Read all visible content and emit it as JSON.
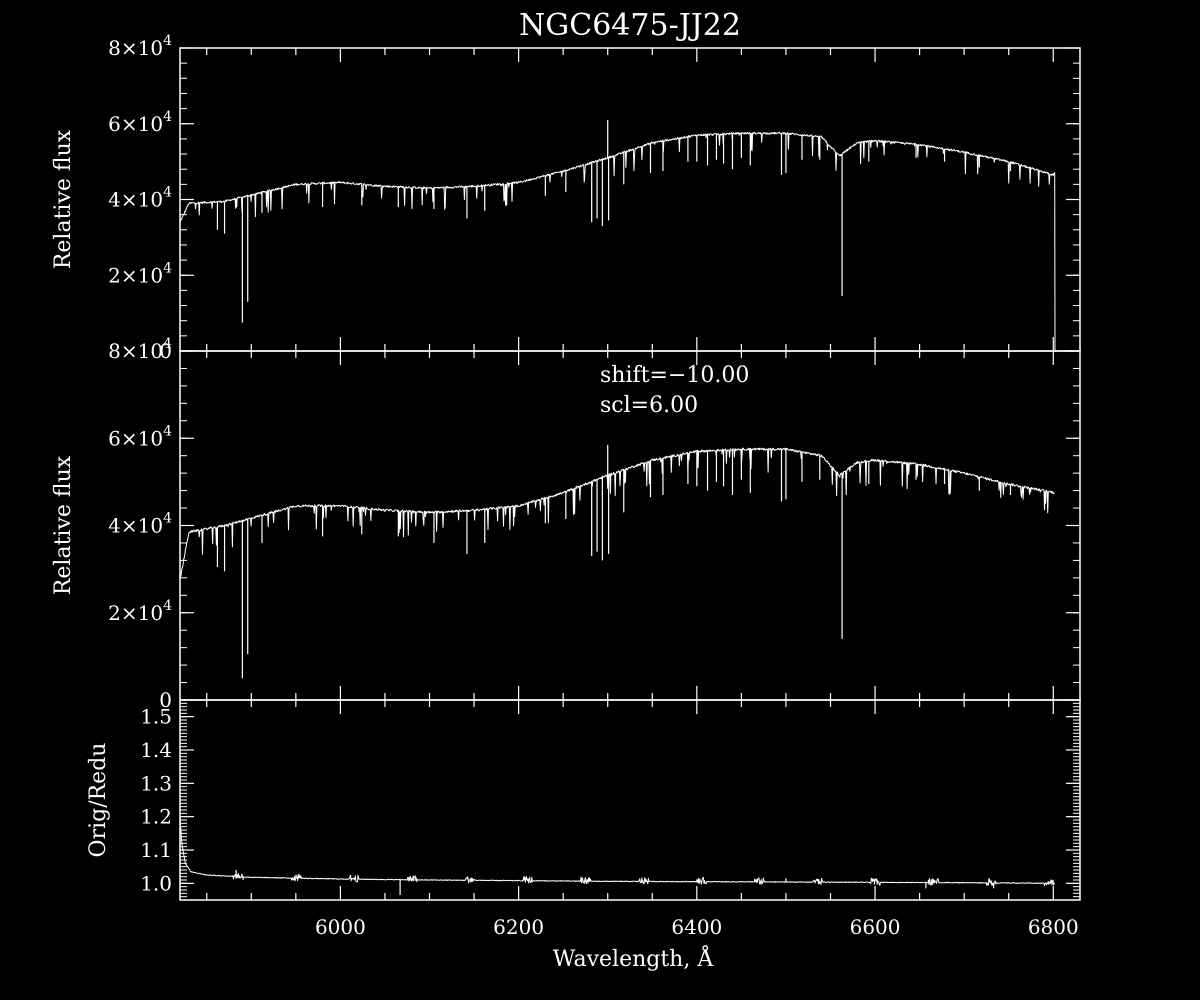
{
  "chart_data": {
    "type": "line",
    "title": "NGC6475-JJ22",
    "x": {
      "label": "Wavelength, Å",
      "range": [
        5820,
        6830
      ],
      "ticks": [
        6000,
        6200,
        6400,
        6600,
        6800
      ],
      "tick_labels": [
        "6000",
        "6200",
        "6400",
        "6600",
        "6800"
      ]
    },
    "panels": [
      {
        "ylabel": "Relative flux",
        "ylim": [
          0,
          80000
        ],
        "yticks": [
          0,
          20000,
          40000,
          60000,
          80000
        ],
        "ytick_mantissa": [
          "0",
          "2×10",
          "4×10",
          "6×10",
          "8×10"
        ],
        "ytick_exp": [
          "",
          "4",
          "4",
          "4",
          "4"
        ],
        "annotations": [],
        "series": [
          {
            "continuum": [
              [
                5820,
                34000
              ],
              [
                5830,
                39000
              ],
              [
                5870,
                39500
              ],
              [
                5950,
                44000
              ],
              [
                6000,
                44500
              ],
              [
                6050,
                43500
              ],
              [
                6100,
                43000
              ],
              [
                6150,
                43500
              ],
              [
                6200,
                44500
              ],
              [
                6250,
                47500
              ],
              [
                6300,
                51000
              ],
              [
                6350,
                55000
              ],
              [
                6400,
                57000
              ],
              [
                6450,
                57500
              ],
              [
                6500,
                57500
              ],
              [
                6540,
                56500
              ],
              [
                6560,
                51500
              ],
              [
                6580,
                55000
              ],
              [
                6600,
                55500
              ],
              [
                6650,
                54500
              ],
              [
                6700,
                52500
              ],
              [
                6750,
                50000
              ],
              [
                6800,
                46500
              ],
              [
                6802,
                47000
              ]
            ],
            "absorption": [
              [
                5890,
                7500
              ],
              [
                5896,
                13000
              ],
              [
                5862,
                32000
              ],
              [
                5870,
                31000
              ],
              [
                5912,
                36500
              ],
              [
                5980,
                38000
              ],
              [
                6024,
                38500
              ],
              [
                6065,
                38000
              ],
              [
                6105,
                37500
              ],
              [
                6142,
                35000
              ],
              [
                6162,
                37000
              ],
              [
                6230,
                41000
              ],
              [
                6253,
                42000
              ],
              [
                6282,
                34000
              ],
              [
                6288,
                35000
              ],
              [
                6294,
                33000
              ],
              [
                6301,
                34500
              ],
              [
                6318,
                44000
              ],
              [
                6348,
                47000
              ],
              [
                6362,
                47500
              ],
              [
                6390,
                50000
              ],
              [
                6400,
                50000
              ],
              [
                6412,
                49000
              ],
              [
                6422,
                50500
              ],
              [
                6430,
                49500
              ],
              [
                6440,
                48000
              ],
              [
                6450,
                51000
              ],
              [
                6460,
                49000
              ],
              [
                6495,
                46500
              ],
              [
                6500,
                47000
              ],
              [
                6518,
                50500
              ],
              [
                6538,
                50500
              ],
              [
                6563,
                14500
              ],
              [
                6593,
                50000
              ],
              [
                6646,
                51000
              ],
              [
                6678,
                50000
              ],
              [
                6717,
                48500
              ],
              [
                6752,
                47500
              ]
            ],
            "emission": [
              [
                6300,
                61000
              ]
            ],
            "drop_at": [
              6802,
              0
            ]
          }
        ]
      },
      {
        "ylabel": "Relative flux",
        "ylim": [
          0,
          80000
        ],
        "yticks": [
          0,
          20000,
          40000,
          60000,
          80000
        ],
        "ytick_mantissa": [
          "0",
          "2×10",
          "4×10",
          "6×10",
          "8×10"
        ],
        "ytick_exp": [
          "",
          "4",
          "4",
          "4",
          "4"
        ],
        "annotations": [
          "shift=−10.00",
          "scl=6.00"
        ],
        "series": [
          {
            "continuum": [
              [
                5820,
                27500
              ],
              [
                5830,
                38500
              ],
              [
                5870,
                40000
              ],
              [
                5950,
                44500
              ],
              [
                6000,
                44500
              ],
              [
                6050,
                43500
              ],
              [
                6100,
                43000
              ],
              [
                6150,
                43500
              ],
              [
                6200,
                44500
              ],
              [
                6250,
                47500
              ],
              [
                6300,
                51500
              ],
              [
                6350,
                55000
              ],
              [
                6400,
                57000
              ],
              [
                6450,
                57500
              ],
              [
                6500,
                57500
              ],
              [
                6540,
                56000
              ],
              [
                6560,
                51500
              ],
              [
                6580,
                54500
              ],
              [
                6600,
                55000
              ],
              [
                6650,
                54000
              ],
              [
                6700,
                52000
              ],
              [
                6750,
                49500
              ],
              [
                6802,
                47500
              ]
            ],
            "absorption": [
              [
                5890,
                5000
              ],
              [
                5896,
                10500
              ],
              [
                5862,
                30500
              ],
              [
                5870,
                29500
              ],
              [
                5912,
                36000
              ],
              [
                5980,
                37500
              ],
              [
                6024,
                38000
              ],
              [
                6065,
                37500
              ],
              [
                6105,
                36000
              ],
              [
                6142,
                33500
              ],
              [
                6162,
                36000
              ],
              [
                6230,
                40500
              ],
              [
                6253,
                41500
              ],
              [
                6282,
                33000
              ],
              [
                6288,
                34000
              ],
              [
                6294,
                32000
              ],
              [
                6301,
                33500
              ],
              [
                6318,
                43000
              ],
              [
                6348,
                46500
              ],
              [
                6362,
                47000
              ],
              [
                6390,
                49500
              ],
              [
                6400,
                49000
              ],
              [
                6412,
                48000
              ],
              [
                6422,
                50000
              ],
              [
                6430,
                49000
              ],
              [
                6440,
                47000
              ],
              [
                6450,
                50500
              ],
              [
                6460,
                47500
              ],
              [
                6495,
                45500
              ],
              [
                6500,
                46000
              ],
              [
                6518,
                50000
              ],
              [
                6538,
                50500
              ],
              [
                6563,
                14000
              ],
              [
                6593,
                49500
              ],
              [
                6646,
                50500
              ],
              [
                6678,
                49500
              ],
              [
                6717,
                48000
              ],
              [
                6752,
                47000
              ]
            ],
            "emission": [
              [
                6300,
                58500
              ]
            ],
            "drop_at": null
          }
        ]
      },
      {
        "ylabel": "Orig/Redu",
        "ylim": [
          0.95,
          1.55
        ],
        "yticks": [
          1.0,
          1.1,
          1.2,
          1.3,
          1.4,
          1.5
        ],
        "ytick_mantissa": [
          "1.0",
          "1.1",
          "1.2",
          "1.3",
          "1.4",
          "1.5"
        ],
        "ytick_exp": [
          "",
          "",
          "",
          "",
          "",
          ""
        ],
        "annotations": [],
        "series": [
          {
            "continuum": [
              [
                5820,
                1.2
              ],
              [
                5822,
                1.12
              ],
              [
                5826,
                1.06
              ],
              [
                5832,
                1.035
              ],
              [
                5850,
                1.025
              ],
              [
                5900,
                1.018
              ],
              [
                6000,
                1.013
              ],
              [
                6100,
                1.01
              ],
              [
                6200,
                1.008
              ],
              [
                6300,
                1.006
              ],
              [
                6400,
                1.005
              ],
              [
                6500,
                1.004
              ],
              [
                6600,
                1.003
              ],
              [
                6700,
                1.002
              ],
              [
                6802,
                1.0
              ]
            ],
            "absorption": [
              [
                6067,
                0.965
              ],
              [
                6657,
                0.985
              ],
              [
                6733,
                0.985
              ]
            ],
            "emission": [
              [
                5883,
                1.04
              ],
              [
                6500,
                1.015
              ]
            ],
            "drop_at": null
          }
        ]
      }
    ]
  }
}
